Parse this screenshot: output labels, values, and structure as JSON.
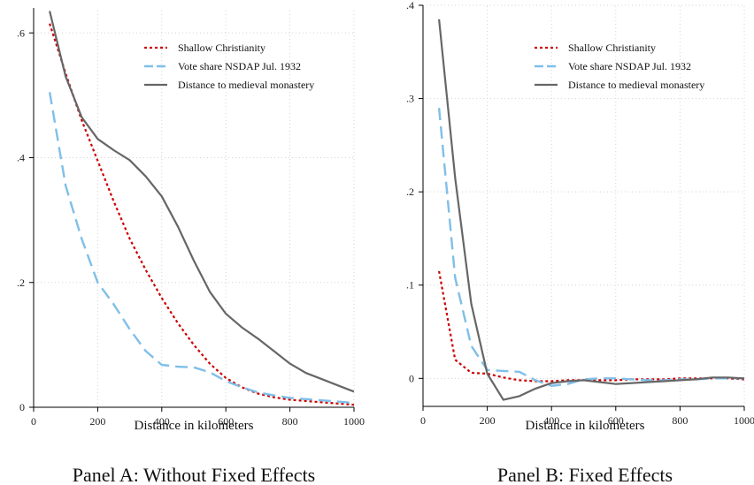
{
  "colors": {
    "shallow": "#cc0000",
    "vote": "#7fbfe8",
    "monastery": "#666666",
    "grid": "#d3d3d3",
    "axis": "#000000"
  },
  "chart_data": [
    {
      "type": "line",
      "caption": "Panel A: Without Fixed Effects",
      "xlabel": "Distance in kilometers",
      "ylabel": "",
      "xlim": [
        0,
        1000
      ],
      "ylim": [
        0,
        0.64
      ],
      "xticks": [
        0,
        200,
        400,
        600,
        800,
        1000
      ],
      "xtick_labels": [
        "0",
        "200",
        "400",
        "600",
        "800",
        "1000"
      ],
      "yticks": [
        0,
        0.2,
        0.4,
        0.6
      ],
      "ytick_labels": [
        "0",
        ".2",
        ".4",
        ".6"
      ],
      "grid": true,
      "legend_position": "top-right",
      "series": [
        {
          "name": "Shallow Christianity",
          "style": "dotted",
          "color_key": "shallow",
          "x": [
            50,
            100,
            150,
            200,
            250,
            300,
            350,
            400,
            450,
            500,
            550,
            600,
            650,
            700,
            750,
            800,
            850,
            900,
            950,
            1000
          ],
          "y": [
            0.615,
            0.535,
            0.46,
            0.395,
            0.33,
            0.27,
            0.22,
            0.175,
            0.135,
            0.1,
            0.07,
            0.047,
            0.032,
            0.022,
            0.016,
            0.012,
            0.01,
            0.008,
            0.006,
            0.004
          ]
        },
        {
          "name": "Vote share NSDAP Jul. 1932",
          "style": "dashed",
          "color_key": "vote",
          "x": [
            50,
            100,
            150,
            200,
            250,
            300,
            350,
            400,
            450,
            500,
            550,
            600,
            650,
            700,
            750,
            800,
            850,
            900,
            950,
            1000
          ],
          "y": [
            0.505,
            0.355,
            0.27,
            0.2,
            0.165,
            0.125,
            0.09,
            0.068,
            0.065,
            0.064,
            0.056,
            0.042,
            0.032,
            0.024,
            0.019,
            0.015,
            0.013,
            0.011,
            0.009,
            0.007
          ]
        },
        {
          "name": "Distance to medieval monastery",
          "style": "solid",
          "color_key": "monastery",
          "x": [
            50,
            100,
            150,
            200,
            250,
            300,
            350,
            400,
            450,
            500,
            550,
            600,
            650,
            700,
            750,
            800,
            850,
            900,
            950,
            1000
          ],
          "y": [
            0.635,
            0.53,
            0.465,
            0.43,
            0.412,
            0.396,
            0.37,
            0.338,
            0.29,
            0.235,
            0.185,
            0.15,
            0.128,
            0.11,
            0.09,
            0.07,
            0.055,
            0.045,
            0.035,
            0.025
          ]
        }
      ]
    },
    {
      "type": "line",
      "caption": "Panel B: Fixed Effects",
      "xlabel": "Distance in kilometers",
      "ylabel": "",
      "xlim": [
        0,
        1000
      ],
      "ylim": [
        -0.03,
        0.4
      ],
      "xticks": [
        0,
        200,
        400,
        600,
        800,
        1000
      ],
      "xtick_labels": [
        "0",
        "200",
        "400",
        "600",
        "800",
        "1000"
      ],
      "yticks": [
        0,
        0.1,
        0.2,
        0.3,
        0.4
      ],
      "ytick_labels": [
        "0",
        ".1",
        ".2",
        ".3",
        ".4"
      ],
      "grid": true,
      "legend_position": "top-right",
      "series": [
        {
          "name": "Shallow Christianity",
          "style": "dotted",
          "color_key": "shallow",
          "x": [
            50,
            100,
            150,
            200,
            250,
            300,
            350,
            400,
            450,
            500,
            550,
            600,
            650,
            700,
            750,
            800,
            850,
            900,
            950,
            1000
          ],
          "y": [
            0.115,
            0.02,
            0.006,
            0.005,
            0.001,
            -0.002,
            -0.003,
            -0.003,
            -0.002,
            -0.002,
            -0.002,
            -0.002,
            -0.001,
            -0.001,
            -0.001,
            0.0,
            0.0,
            0.0,
            0.0,
            -0.001
          ]
        },
        {
          "name": "Vote share NSDAP Jul. 1932",
          "style": "dashed",
          "color_key": "vote",
          "x": [
            50,
            100,
            150,
            200,
            250,
            300,
            350,
            400,
            450,
            500,
            550,
            600,
            650,
            700,
            750,
            800,
            850,
            900,
            950,
            1000
          ],
          "y": [
            0.29,
            0.108,
            0.035,
            0.009,
            0.008,
            0.007,
            -0.002,
            -0.008,
            -0.006,
            -0.001,
            0.0,
            0.0,
            -0.001,
            -0.002,
            -0.002,
            -0.001,
            -0.001,
            0.0,
            0.0,
            0.0
          ]
        },
        {
          "name": "Distance to medieval monastery",
          "style": "solid",
          "color_key": "monastery",
          "x": [
            50,
            100,
            150,
            200,
            250,
            300,
            350,
            400,
            450,
            500,
            550,
            600,
            650,
            700,
            750,
            800,
            850,
            900,
            950,
            1000
          ],
          "y": [
            0.385,
            0.215,
            0.08,
            0.005,
            -0.023,
            -0.019,
            -0.011,
            -0.005,
            -0.003,
            -0.002,
            -0.004,
            -0.006,
            -0.005,
            -0.004,
            -0.003,
            -0.002,
            -0.001,
            0.001,
            0.001,
            0.0
          ]
        }
      ]
    }
  ]
}
